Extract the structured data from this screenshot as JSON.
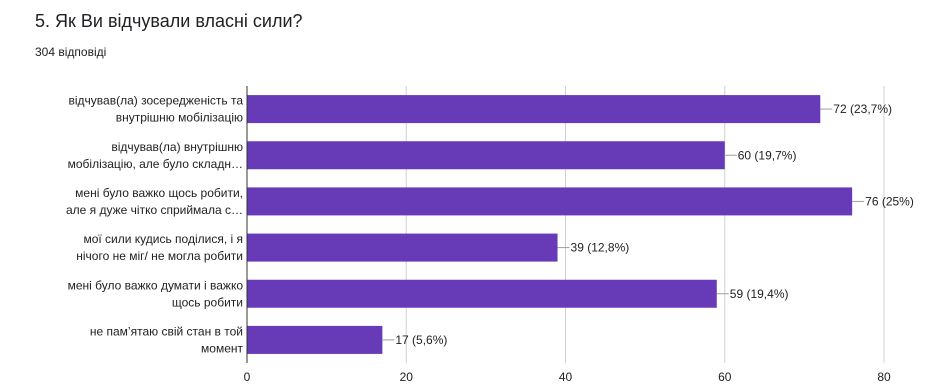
{
  "question": {
    "title": "5.  Як Ви відчували власні сили?",
    "responses": "304 відповіді"
  },
  "chart_data": {
    "type": "bar",
    "orientation": "horizontal",
    "categories": [
      [
        "відчував(ла) зосередженість та",
        "внутрішню мобілізацію"
      ],
      [
        "відчував(ла) внутрішню",
        "мобілізацію, але було складн…"
      ],
      [
        "мені було важко щось робити,",
        "але я дуже чітко сприймала с…"
      ],
      [
        "мої сили кудись поділися, і я",
        "нічого не міг/ не могла робити"
      ],
      [
        "мені було важко думати і важко",
        "щось робити"
      ],
      [
        "не пам’ятаю свій стан в той",
        "момент"
      ]
    ],
    "values": [
      72,
      60,
      76,
      39,
      59,
      17
    ],
    "data_labels": [
      "72 (23,7%)",
      "60 (19,7%)",
      "76 (25%)",
      "39 (12,8%)",
      "59 (19,4%)",
      "17 (5,6%)"
    ],
    "xlim": [
      0,
      80
    ],
    "xticks": [
      "0",
      "20",
      "40",
      "60",
      "80"
    ],
    "grid": true,
    "colors": {
      "bar": "#673ab7",
      "grid": "#d0d0d0",
      "axis": "#333333",
      "text": "#202124",
      "leader": "#9e9e9e"
    }
  }
}
